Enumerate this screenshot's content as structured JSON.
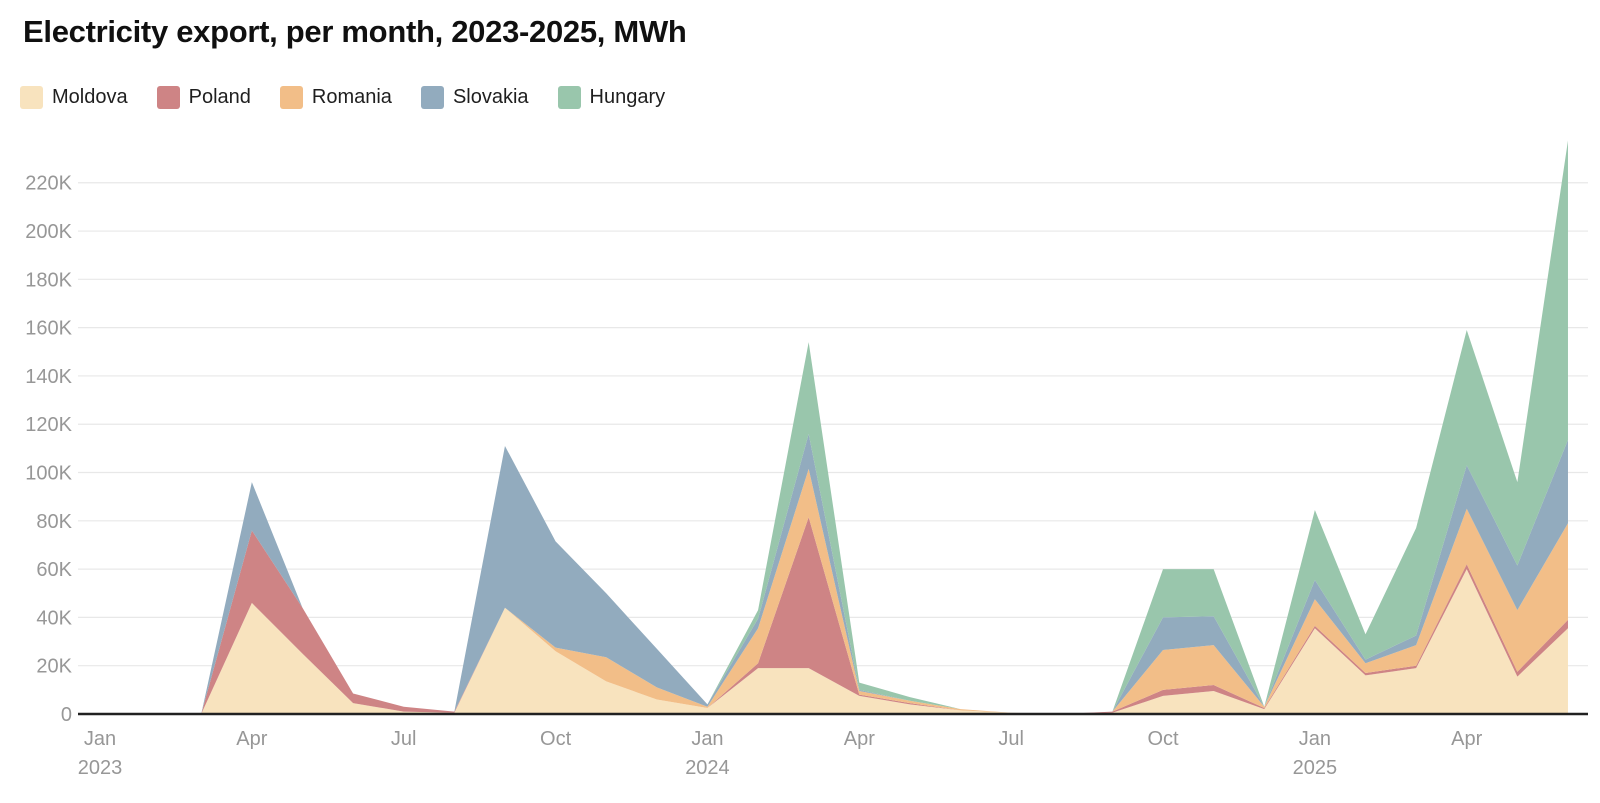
{
  "page": {
    "title": "Electricity export, per month, 2023-2025, MWh"
  },
  "colors": {
    "background": "#ffffff",
    "grid_line": "#e8e8e8",
    "axis_line": "#212121",
    "tick_label": "#979797",
    "title_text": "#101010",
    "legend_text": "#1f1f1f"
  },
  "legend": {
    "items": [
      {
        "label": "Moldova",
        "color": "#f8e3be"
      },
      {
        "label": "Poland",
        "color": "#ce8485"
      },
      {
        "label": "Romania",
        "color": "#f2be88"
      },
      {
        "label": "Slovakia",
        "color": "#92abbe"
      },
      {
        "label": "Hungary",
        "color": "#99c6ac"
      }
    ]
  },
  "chart_data": {
    "type": "area",
    "stacked": true,
    "title": "Electricity export, per month, 2023-2025, MWh",
    "xlabel": "",
    "ylabel": "MWh",
    "unit": "thousand MWh (values in K)",
    "grid": true,
    "legend_position": "top-left",
    "ylim": [
      0,
      238
    ],
    "x": [
      "Jan 2023",
      "Feb 2023",
      "Mar 2023",
      "Apr 2023",
      "May 2023",
      "Jun 2023",
      "Jul 2023",
      "Aug 2023",
      "Sep 2023",
      "Oct 2023",
      "Nov 2023",
      "Dec 2023",
      "Jan 2024",
      "Feb 2024",
      "Mar 2024",
      "Apr 2024",
      "May 2024",
      "Jun 2024",
      "Jul 2024",
      "Aug 2024",
      "Sep 2024",
      "Oct 2024",
      "Nov 2024",
      "Dec 2024",
      "Jan 2025",
      "Feb 2025",
      "Mar 2025",
      "Apr 2025",
      "May 2025",
      "Jun 2025"
    ],
    "series": [
      {
        "name": "Moldova",
        "color": "#f8e3be",
        "values": [
          0,
          0,
          0,
          46,
          25,
          4.5,
          1,
          0.5,
          44,
          26,
          13.5,
          6,
          2.5,
          19,
          19,
          7.5,
          4,
          1.5,
          0.5,
          0,
          0.5,
          7.5,
          9.5,
          2,
          35.5,
          16,
          19,
          60,
          15.5,
          35.5
        ]
      },
      {
        "name": "Poland",
        "color": "#ce8485",
        "values": [
          0,
          0,
          0,
          30,
          19,
          4,
          2,
          0.5,
          0,
          0,
          0,
          0,
          0,
          2,
          62.5,
          0.5,
          0.5,
          0,
          0,
          0,
          0.5,
          2.5,
          2.5,
          0.5,
          1,
          1,
          1,
          2,
          2,
          3.5
        ]
      },
      {
        "name": "Romania",
        "color": "#f2be88",
        "values": [
          0,
          0,
          0,
          0,
          0,
          0,
          0,
          0,
          0,
          1.5,
          10,
          5,
          0.5,
          14.5,
          20,
          1.5,
          1,
          0.5,
          0,
          0,
          0,
          16.5,
          16.5,
          0.5,
          11,
          4,
          8.5,
          23,
          25.5,
          40
        ]
      },
      {
        "name": "Slovakia",
        "color": "#92abbe",
        "values": [
          0,
          0,
          0,
          20,
          0,
          0,
          0,
          0,
          67,
          44,
          26.5,
          16,
          1,
          4,
          14.5,
          0.5,
          0,
          0,
          0,
          0,
          0,
          13.5,
          12,
          0,
          8,
          1.5,
          4,
          18,
          18.5,
          34.5
        ]
      },
      {
        "name": "Hungary",
        "color": "#99c6ac",
        "values": [
          0,
          0,
          0,
          0,
          0,
          0,
          0,
          0,
          0,
          0,
          0,
          0,
          0,
          3.5,
          38,
          3,
          1.5,
          0,
          0,
          0,
          0,
          20,
          19.5,
          0,
          29,
          10.5,
          44.5,
          56,
          34.5,
          124
        ]
      }
    ],
    "y_ticks": [
      {
        "value": 0,
        "label": "0"
      },
      {
        "value": 20,
        "label": "20K"
      },
      {
        "value": 40,
        "label": "40K"
      },
      {
        "value": 60,
        "label": "60K"
      },
      {
        "value": 80,
        "label": "80K"
      },
      {
        "value": 100,
        "label": "100K"
      },
      {
        "value": 120,
        "label": "120K"
      },
      {
        "value": 140,
        "label": "140K"
      },
      {
        "value": 160,
        "label": "160K"
      },
      {
        "value": 180,
        "label": "180K"
      },
      {
        "value": 200,
        "label": "200K"
      },
      {
        "value": 220,
        "label": "220K"
      }
    ],
    "x_ticks": [
      {
        "index": 0,
        "label": "Jan",
        "year": "2023"
      },
      {
        "index": 3,
        "label": "Apr"
      },
      {
        "index": 6,
        "label": "Jul"
      },
      {
        "index": 9,
        "label": "Oct"
      },
      {
        "index": 12,
        "label": "Jan",
        "year": "2024"
      },
      {
        "index": 15,
        "label": "Apr"
      },
      {
        "index": 18,
        "label": "Jul"
      },
      {
        "index": 21,
        "label": "Oct"
      },
      {
        "index": 24,
        "label": "Jan",
        "year": "2025"
      },
      {
        "index": 27,
        "label": "Apr"
      }
    ]
  }
}
